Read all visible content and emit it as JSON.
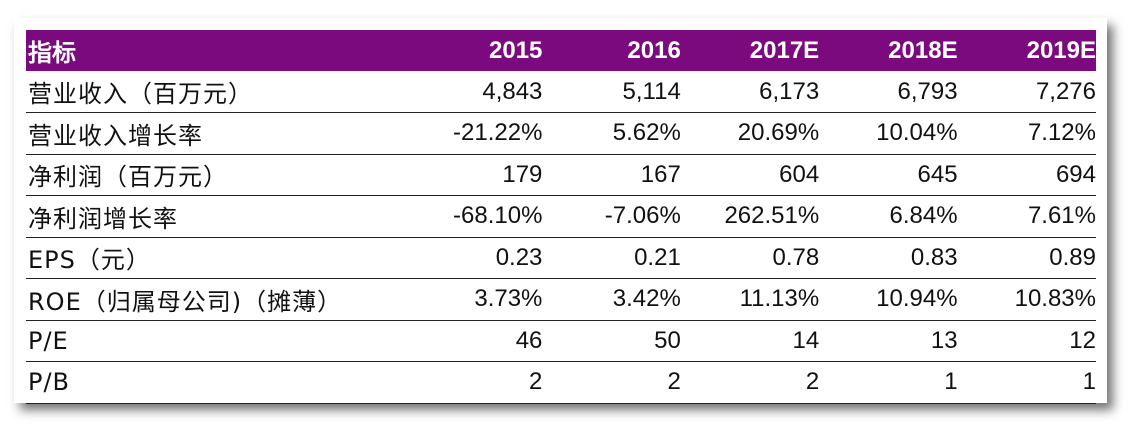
{
  "table": {
    "header": [
      "指标",
      "2015",
      "2016",
      "2017E",
      "2018E",
      "2019E"
    ],
    "rows": [
      {
        "label": "营业收入（百万元）",
        "values": [
          "4,843",
          "5,114",
          "6,173",
          "6,793",
          "7,276"
        ]
      },
      {
        "label": "营业收入增长率",
        "values": [
          "-21.22%",
          "5.62%",
          "20.69%",
          "10.04%",
          "7.12%"
        ]
      },
      {
        "label": "净利润（百万元）",
        "values": [
          "179",
          "167",
          "604",
          "645",
          "694"
        ]
      },
      {
        "label": "净利润增长率",
        "values": [
          "-68.10%",
          "-7.06%",
          "262.51%",
          "6.84%",
          "7.61%"
        ]
      },
      {
        "label": "EPS（元）",
        "values": [
          "0.23",
          "0.21",
          "0.78",
          "0.83",
          "0.89"
        ]
      },
      {
        "label": "ROE（归属母公司)（摊薄）",
        "values": [
          "3.73%",
          "3.42%",
          "11.13%",
          "10.94%",
          "10.83%"
        ]
      },
      {
        "label": "P/E",
        "values": [
          "46",
          "50",
          "14",
          "13",
          "12"
        ]
      },
      {
        "label": "P/B",
        "values": [
          "2",
          "2",
          "2",
          "1",
          "1"
        ]
      }
    ]
  },
  "colors": {
    "header_bg": "#7a0a7e",
    "header_text": "#ffffff"
  }
}
